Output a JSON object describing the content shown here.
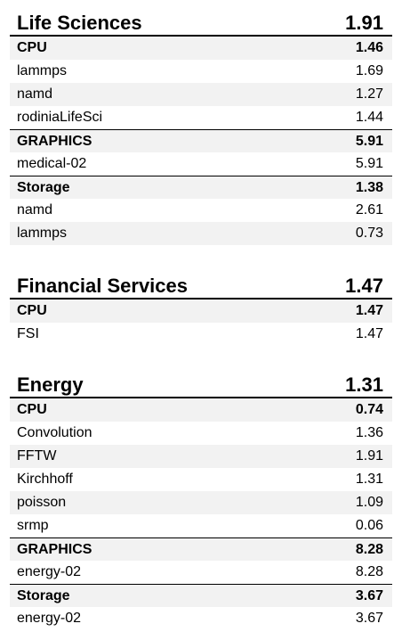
{
  "sections": [
    {
      "title": "Life Sciences",
      "score": "1.91",
      "rows": [
        {
          "label": "CPU",
          "value": "1.46",
          "kind": "group"
        },
        {
          "label": "lammps",
          "value": "1.69",
          "kind": "item"
        },
        {
          "label": "namd",
          "value": "1.27",
          "kind": "item"
        },
        {
          "label": "rodiniaLifeSci",
          "value": "1.44",
          "kind": "item"
        },
        {
          "label": "GRAPHICS",
          "value": "5.91",
          "kind": "group"
        },
        {
          "label": "medical-02",
          "value": "5.91",
          "kind": "item"
        },
        {
          "label": "Storage",
          "value": "1.38",
          "kind": "group"
        },
        {
          "label": "namd",
          "value": "2.61",
          "kind": "item"
        },
        {
          "label": "lammps",
          "value": "0.73",
          "kind": "item"
        }
      ]
    },
    {
      "title": "Financial Services",
      "score": "1.47",
      "rows": [
        {
          "label": "CPU",
          "value": "1.47",
          "kind": "group"
        },
        {
          "label": "FSI",
          "value": "1.47",
          "kind": "item"
        }
      ]
    },
    {
      "title": "Energy",
      "score": "1.31",
      "rows": [
        {
          "label": "CPU",
          "value": "0.74",
          "kind": "group"
        },
        {
          "label": "Convolution",
          "value": "1.36",
          "kind": "item"
        },
        {
          "label": "FFTW",
          "value": "1.91",
          "kind": "item"
        },
        {
          "label": "Kirchhoff",
          "value": "1.31",
          "kind": "item"
        },
        {
          "label": "poisson",
          "value": "1.09",
          "kind": "item"
        },
        {
          "label": "srmp",
          "value": "0.06",
          "kind": "item"
        },
        {
          "label": "GRAPHICS",
          "value": "8.28",
          "kind": "group"
        },
        {
          "label": "energy-02",
          "value": "8.28",
          "kind": "item"
        },
        {
          "label": "Storage",
          "value": "3.67",
          "kind": "group"
        },
        {
          "label": "energy-02",
          "value": "3.67",
          "kind": "item"
        }
      ]
    }
  ]
}
